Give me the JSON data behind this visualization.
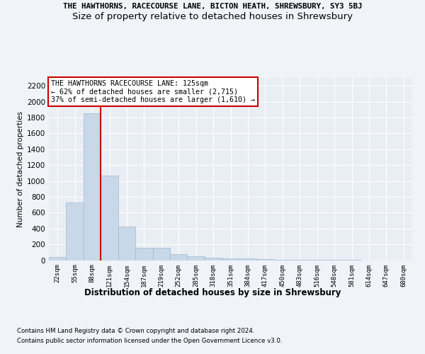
{
  "title_line1": "THE HAWTHORNS, RACECOURSE LANE, BICTON HEATH, SHREWSBURY, SY3 5BJ",
  "title_line2": "Size of property relative to detached houses in Shrewsbury",
  "xlabel": "Distribution of detached houses by size in Shrewsbury",
  "ylabel": "Number of detached properties",
  "categories": [
    "22sqm",
    "55sqm",
    "88sqm",
    "121sqm",
    "154sqm",
    "187sqm",
    "219sqm",
    "252sqm",
    "285sqm",
    "318sqm",
    "351sqm",
    "384sqm",
    "417sqm",
    "450sqm",
    "483sqm",
    "516sqm",
    "548sqm",
    "581sqm",
    "614sqm",
    "647sqm",
    "680sqm"
  ],
  "values": [
    40,
    730,
    1850,
    1070,
    420,
    155,
    155,
    75,
    45,
    30,
    25,
    20,
    10,
    5,
    3,
    2,
    1,
    1,
    0,
    0,
    0
  ],
  "bar_color": "#c8d8e8",
  "bar_edge_color": "#a0b8d0",
  "vline_color": "#cc0000",
  "ylim": [
    0,
    2300
  ],
  "yticks": [
    0,
    200,
    400,
    600,
    800,
    1000,
    1200,
    1400,
    1600,
    1800,
    2000,
    2200
  ],
  "annotation_box_text": "THE HAWTHORNS RACECOURSE LANE: 125sqm\n← 62% of detached houses are smaller (2,715)\n37% of semi-detached houses are larger (1,610) →",
  "annotation_box_color": "#ffffff",
  "annotation_box_edgecolor": "#cc0000",
  "footnote1": "Contains HM Land Registry data © Crown copyright and database right 2024.",
  "footnote2": "Contains public sector information licensed under the Open Government Licence v3.0.",
  "bg_color": "#e8eef4",
  "grid_color": "#ffffff",
  "fig_bg_color": "#f0f4f8"
}
